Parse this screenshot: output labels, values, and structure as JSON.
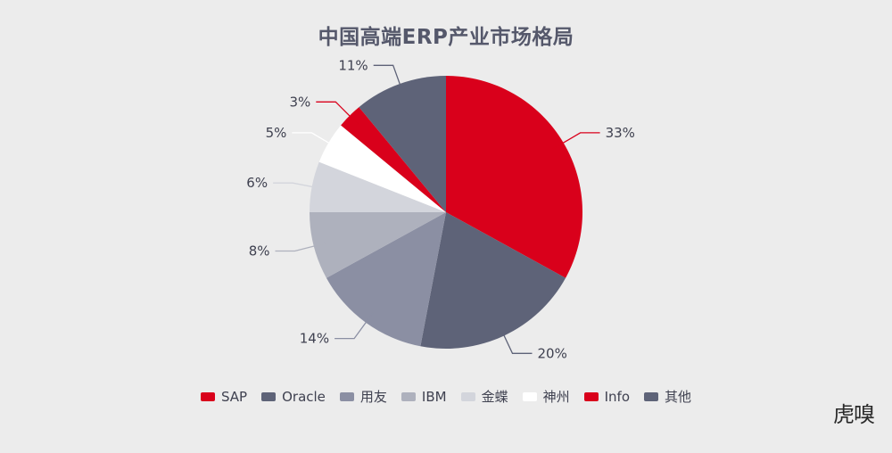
{
  "chart_data": {
    "type": "pie",
    "title": "中国高端ERP产业市场格局",
    "legend_position": "bottom",
    "start_angle": "12 o'clock",
    "direction": "clockwise",
    "slices": [
      {
        "name": "SAP",
        "value": 33,
        "label": "33%",
        "color": "#d9001b"
      },
      {
        "name": "Oracle",
        "value": 20,
        "label": "20%",
        "color": "#5e6378"
      },
      {
        "name": "用友",
        "value": 14,
        "label": "14%",
        "color": "#8b8fa3"
      },
      {
        "name": "IBM",
        "value": 8,
        "label": "8%",
        "color": "#aeb1bd"
      },
      {
        "name": "金蝶",
        "value": 6,
        "label": "6%",
        "color": "#d3d5dc"
      },
      {
        "name": "神州",
        "value": 5,
        "label": "5%",
        "color": "#ffffff"
      },
      {
        "name": "Info",
        "value": 3,
        "label": "3%",
        "color": "#d9001b"
      },
      {
        "name": "其他",
        "value": 11,
        "label": "11%",
        "color": "#5e6378"
      }
    ]
  },
  "watermark": {
    "text": "虎嗅"
  }
}
